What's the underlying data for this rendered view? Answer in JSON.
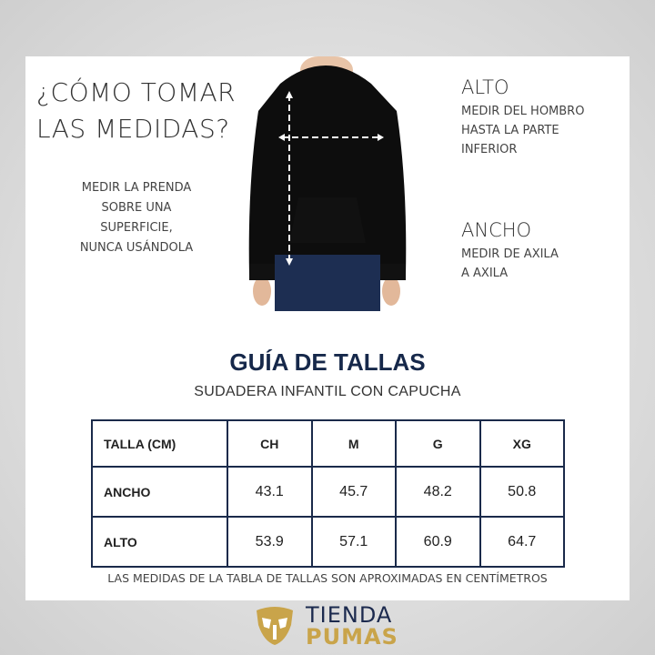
{
  "header": {
    "title": "¿CÓMO TOMAR\nLAS MEDIDAS?",
    "note": "MEDIR LA PRENDA\nSOBRE UNA\nSUPERFICIE,\nNUNCA USÁNDOLA"
  },
  "alto": {
    "title": "ALTO",
    "desc": "MEDIR DEL HOMBRO\nHASTA LA PARTE\nINFERIOR"
  },
  "ancho": {
    "title": "ANCHO",
    "desc": "MEDIR DE AXILA\nA AXILA"
  },
  "guide": {
    "title": "GUÍA DE TALLAS",
    "subtitle": "SUDADERA INFANTIL CON CAPUCHA"
  },
  "table": {
    "headers": [
      "TALLA (CM)",
      "CH",
      "M",
      "G",
      "XG"
    ],
    "rows": [
      [
        "ANCHO",
        "43.1",
        "45.7",
        "48.2",
        "50.8"
      ],
      [
        "ALTO",
        "53.9",
        "57.1",
        "60.9",
        "64.7"
      ]
    ]
  },
  "footnote": "LAS MEDIDAS DE LA TABLA DE TALLAS SON APROXIMADAS EN CENTÍMETROS",
  "logo": {
    "line1": "TIENDA",
    "line2": "PUMAS",
    "icon": "puma-crest-icon"
  },
  "colors": {
    "navy": "#1a2a4a",
    "gold": "#c9a44a"
  }
}
